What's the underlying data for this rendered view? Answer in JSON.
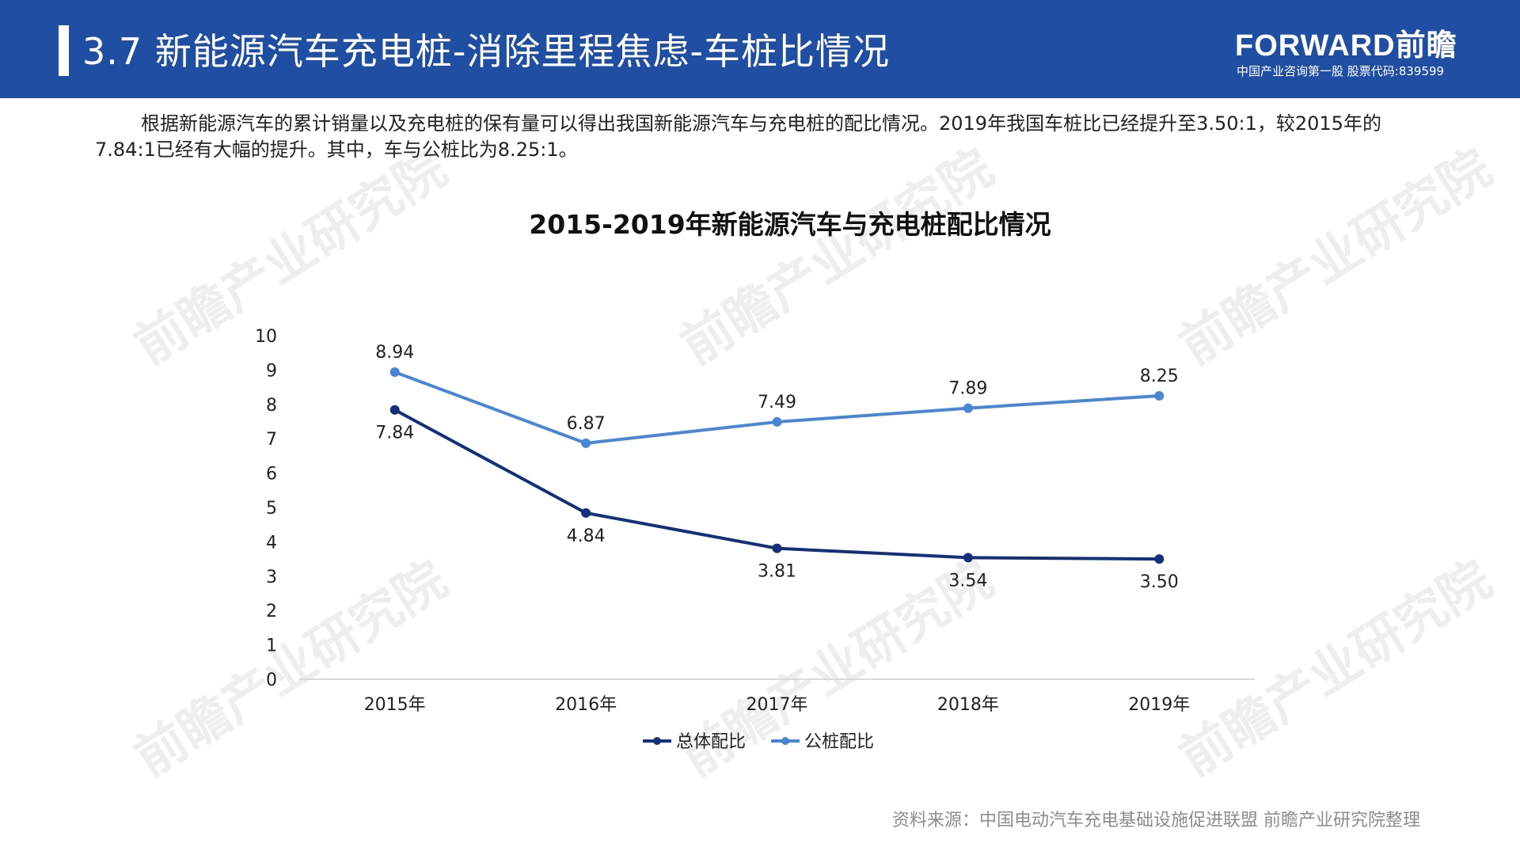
{
  "header": {
    "title": "3.7 新能源汽车充电桩-消除里程焦虑-车桩比情况",
    "logo_brand": "FORWARD前瞻",
    "logo_tagline": "中国产业咨询第一股 股票代码:839599",
    "background_color": "#1f4ea3"
  },
  "intro_text": "根据新能源汽车的累计销量以及充电桩的保有量可以得出我国新能源汽车与充电桩的配比情况。2019年我国车桩比已经提升至3.50:1，较2015年的7.84:1已经有大幅的提升。其中，车与公桩比为8.25:1。",
  "watermark_text": "前瞻产业研究院",
  "chart_data": {
    "type": "line",
    "title": "2015-2019年新能源汽车与充电桩配比情况",
    "categories": [
      "2015年",
      "2016年",
      "2017年",
      "2018年",
      "2019年"
    ],
    "series": [
      {
        "name": "总体配比",
        "values": [
          7.84,
          4.84,
          3.81,
          3.54,
          3.5
        ],
        "color": "#14307a",
        "labels": [
          "7.84",
          "4.84",
          "3.81",
          "3.54",
          "3.50"
        ],
        "label_position": "below"
      },
      {
        "name": "公桩配比",
        "values": [
          8.94,
          6.87,
          7.49,
          7.89,
          8.25
        ],
        "color": "#4a86d6",
        "labels": [
          "8.94",
          "6.87",
          "7.49",
          "7.89",
          "8.25"
        ],
        "label_position": "above"
      }
    ],
    "ylim": [
      0,
      10
    ],
    "yticks": [
      "0",
      "1",
      "2",
      "3",
      "4",
      "5",
      "6",
      "7",
      "8",
      "9",
      "10"
    ],
    "xlabel": "",
    "ylabel": "",
    "grid": false,
    "legend_position": "bottom"
  },
  "source_text": "资料来源：中国电动汽车充电基础设施促进联盟 前瞻产业研究院整理"
}
